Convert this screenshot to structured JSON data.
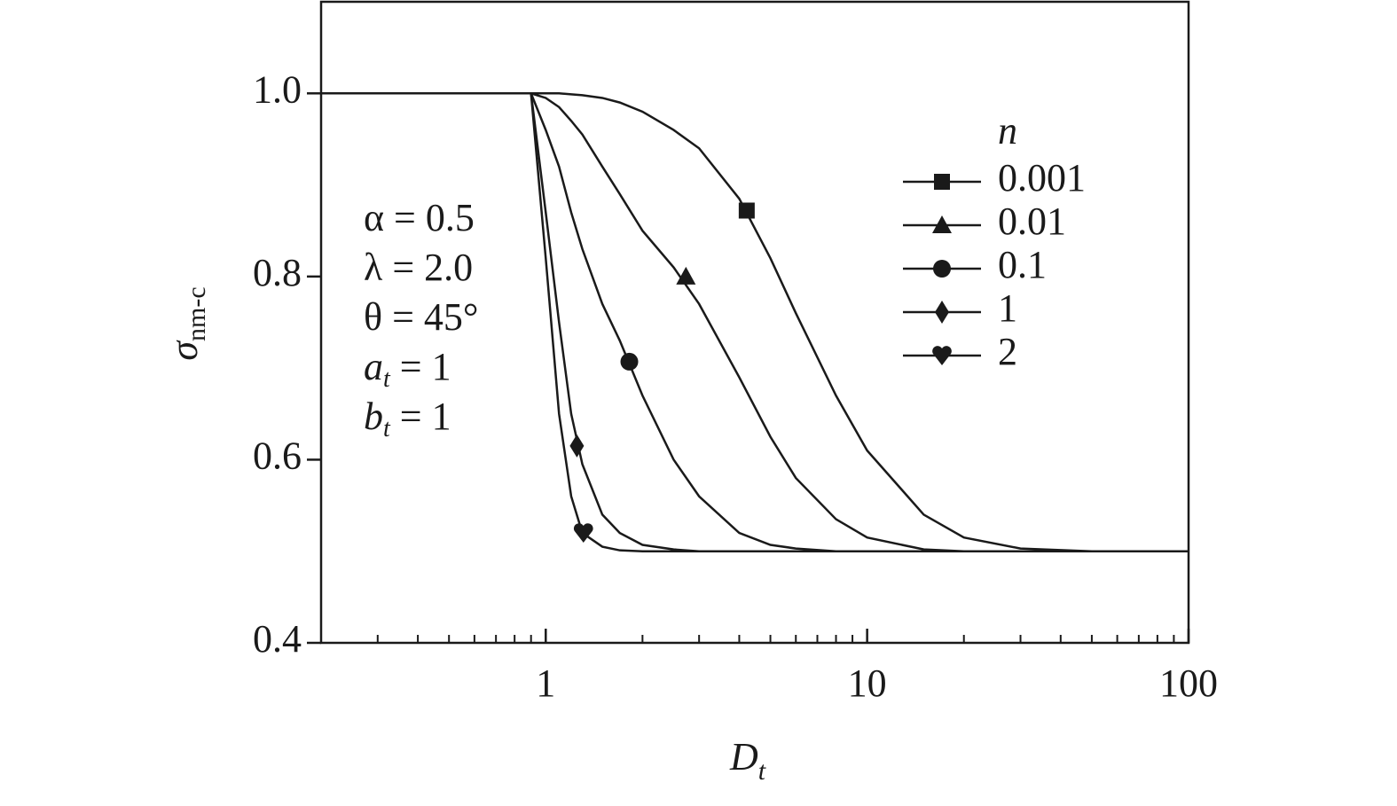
{
  "chart_data": {
    "type": "line",
    "xlabel": [
      "D",
      "t"
    ],
    "ylabel": [
      "σ",
      "nm-c"
    ],
    "xlog": true,
    "xlim": [
      0.2,
      100
    ],
    "ylim": [
      0.4,
      1.1
    ],
    "xticks": [
      1,
      10,
      100
    ],
    "xminorticks": [
      0.3,
      0.4,
      0.5,
      0.6,
      0.7,
      0.8,
      0.9,
      2,
      3,
      4,
      5,
      6,
      7,
      8,
      9,
      20,
      30,
      40,
      50,
      60,
      70,
      80,
      90
    ],
    "yticks": [
      0.4,
      0.6,
      0.8,
      {
        "value": 1,
        "label": "1.0"
      }
    ],
    "color": "#1a1a1a",
    "legend_title": "n",
    "legend": "upper right",
    "annotations": [
      [
        "α = 0.5"
      ],
      [
        "λ = 2.0"
      ],
      [
        "θ = 45°"
      ],
      [
        "a",
        "t",
        " = 1"
      ],
      [
        "b",
        "t",
        " = 1"
      ]
    ],
    "x": [
      0.2,
      0.9,
      1.0,
      1.1,
      1.2,
      1.3,
      1.5,
      1.7,
      2,
      2.5,
      3,
      4,
      5,
      6,
      8,
      10,
      15,
      20,
      30,
      50,
      100
    ],
    "series": [
      {
        "name": "0.001",
        "marker": "square",
        "marker_x": 4.22,
        "marker_y": 0.872,
        "values": [
          1,
          1,
          1,
          1,
          0.999,
          0.998,
          0.995,
          0.99,
          0.98,
          0.96,
          0.94,
          0.885,
          0.82,
          0.76,
          0.67,
          0.61,
          0.54,
          0.515,
          0.503,
          0.5,
          0.5
        ]
      },
      {
        "name": "0.01",
        "marker": "triangle",
        "marker_x": 2.73,
        "marker_y": 0.8,
        "values": [
          1,
          1,
          0.995,
          0.985,
          0.97,
          0.955,
          0.92,
          0.89,
          0.85,
          0.81,
          0.77,
          0.69,
          0.625,
          0.58,
          0.535,
          0.515,
          0.502,
          0.5,
          0.5,
          0.5,
          0.5
        ]
      },
      {
        "name": "0.1",
        "marker": "circle",
        "marker_x": 1.82,
        "marker_y": 0.707,
        "values": [
          1,
          1,
          0.96,
          0.92,
          0.87,
          0.83,
          0.77,
          0.73,
          0.67,
          0.6,
          0.56,
          0.52,
          0.507,
          0.503,
          0.5,
          0.5,
          0.5,
          0.5,
          0.5,
          0.5,
          0.5
        ]
      },
      {
        "name": "1",
        "marker": "diamond",
        "marker_x": 1.25,
        "marker_y": 0.615,
        "values": [
          1,
          1,
          0.87,
          0.75,
          0.65,
          0.595,
          0.54,
          0.52,
          0.507,
          0.502,
          0.5,
          0.5,
          0.5,
          0.5,
          0.5,
          0.5,
          0.5,
          0.5,
          0.5,
          0.5,
          0.5
        ]
      },
      {
        "name": "2",
        "marker": "heart",
        "marker_x": 1.31,
        "marker_y": 0.52,
        "values": [
          1,
          1,
          0.82,
          0.65,
          0.56,
          0.52,
          0.505,
          0.501,
          0.5,
          0.5,
          0.5,
          0.5,
          0.5,
          0.5,
          0.5,
          0.5,
          0.5,
          0.5,
          0.5,
          0.5,
          0.5
        ]
      }
    ]
  }
}
